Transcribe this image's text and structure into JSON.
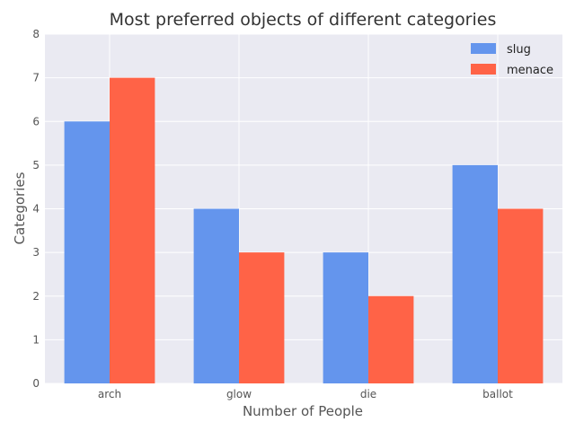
{
  "chart_data": {
    "type": "bar",
    "title": "Most preferred objects of different categories",
    "xlabel": "Number of People",
    "ylabel": "Categories",
    "categories": [
      "arch",
      "glow",
      "die",
      "ballot"
    ],
    "series": [
      {
        "name": "slug",
        "values": [
          6,
          4,
          3,
          5
        ],
        "color": "#6495ED"
      },
      {
        "name": "menace",
        "values": [
          7,
          3,
          2,
          4
        ],
        "color": "#FF6347"
      }
    ],
    "ylim": [
      0,
      8
    ],
    "yticks": [
      0,
      1,
      2,
      3,
      4,
      5,
      6,
      7,
      8
    ],
    "grid": true,
    "legend_position": "top-right",
    "background_color": "#EAEAF2"
  }
}
